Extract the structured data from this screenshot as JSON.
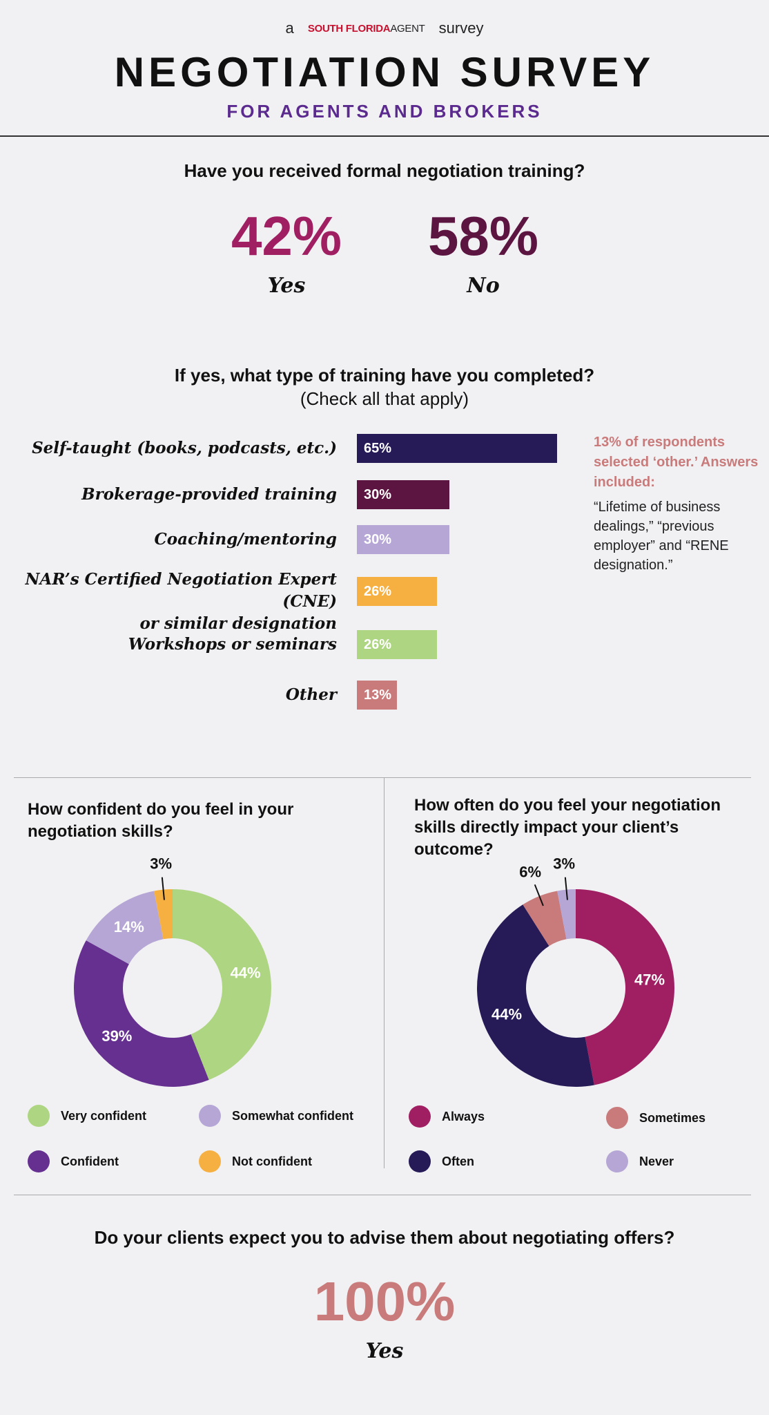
{
  "header": {
    "byline_pre": "a",
    "brand_main": "SOUTH FLORIDA",
    "brand_sub": "AGENT",
    "byline_post": "survey",
    "title": "NEGOTIATION SURVEY",
    "subtitle": "FOR AGENTS AND BROKERS"
  },
  "q1": {
    "question": "Have you received formal negotiation training?",
    "yes_pct": "42%",
    "yes_label": "Yes",
    "no_pct": "58%",
    "no_label": "No"
  },
  "q2": {
    "question": "If yes, what type of training have you completed?",
    "hint": "(Check all that apply)",
    "note_heading": "13% of respondents selected ‘other.’ Answers included:",
    "note_body": "“Lifetime of business dealings,” “previous employer” and “RENE designation.”"
  },
  "q3": {
    "question": "How confident do you feel in your negotiation skills?"
  },
  "q4": {
    "question": "How often do you feel your negotiation skills directly impact your client’s outcome?"
  },
  "q5": {
    "question": "Do your clients expect you to advise them about negotiating offers?",
    "pct": "100%",
    "label": "Yes"
  },
  "colors": {
    "navy": "#261a57",
    "plum": "#5c1440",
    "lavender": "#b6a6d6",
    "orange": "#f6b042",
    "green": "#aed582",
    "rose": "#c97a7a",
    "magenta": "#a01f62",
    "purple": "#663090"
  },
  "chart_data": [
    {
      "type": "bar",
      "orientation": "horizontal",
      "categories": [
        "Self-taught (books, podcasts, etc.)",
        "Brokerage-provided training",
        "Coaching/mentoring",
        "NAR’s Certified Negotiation Expert (CNE) or similar designation",
        "Workshops or seminars",
        "Other"
      ],
      "values": [
        65,
        30,
        30,
        26,
        26,
        13
      ],
      "labels": [
        "65%",
        "30%",
        "30%",
        "26%",
        "26%",
        "13%"
      ],
      "colors": [
        "#261a57",
        "#5c1440",
        "#b6a6d6",
        "#f6b042",
        "#aed582",
        "#c97a7a"
      ]
    },
    {
      "type": "pie",
      "donut": true,
      "slices": [
        {
          "name": "Very confident",
          "value": 44,
          "label": "44%",
          "color": "#aed582"
        },
        {
          "name": "Confident",
          "value": 39,
          "label": "39%",
          "color": "#663090"
        },
        {
          "name": "Somewhat confident",
          "value": 14,
          "label": "14%",
          "color": "#b6a6d6"
        },
        {
          "name": "Not confident",
          "value": 3,
          "label": "3%",
          "color": "#f6b042"
        }
      ]
    },
    {
      "type": "pie",
      "donut": true,
      "slices": [
        {
          "name": "Always",
          "value": 47,
          "label": "47%",
          "color": "#a01f62"
        },
        {
          "name": "Often",
          "value": 44,
          "label": "44%",
          "color": "#261a57"
        },
        {
          "name": "Sometimes",
          "value": 6,
          "label": "6%",
          "color": "#c97a7a"
        },
        {
          "name": "Never",
          "value": 3,
          "label": "3%",
          "color": "#b6a6d6"
        }
      ]
    }
  ]
}
